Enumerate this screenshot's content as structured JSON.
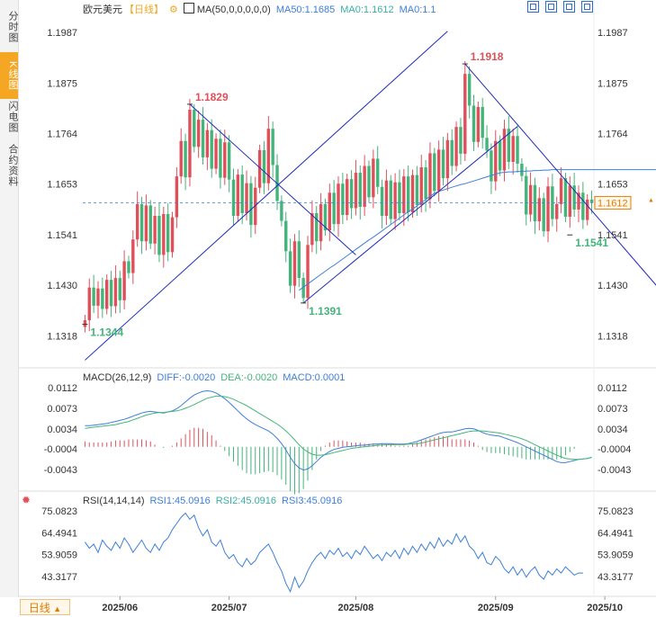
{
  "sidebar": {
    "tabs": [
      {
        "label": "分时图",
        "active": false
      },
      {
        "label": "K线图",
        "active": true
      },
      {
        "label": "闪电图",
        "active": false
      },
      {
        "label": "合约资料",
        "active": false
      }
    ]
  },
  "header": {
    "symbol": "欧元美元",
    "period": "【日线】",
    "settings_icon": "gear-icon",
    "ma_icon": "indicator-icon",
    "ma_label": "MA(50,0,0,0,0,0)",
    "ma50": "MA50:1.1685",
    "ma0a": "MA0:1.1612",
    "ma0b": "MA0:1.1",
    "window_icons": [
      "expand-icon",
      "restore-icon",
      "maximize-icon",
      "fullscreen-icon"
    ]
  },
  "macd_header": {
    "label": "MACD(26,12,9)",
    "diff": "DIFF:-0.0020",
    "dea": "DEA:-0.0020",
    "macd": "MACD:0.0001"
  },
  "rsi_header": {
    "icon": "target-icon",
    "label": "RSI(14,14,14)",
    "rsi1": "RSI1:45.0916",
    "rsi2": "RSI2:45.0916",
    "rsi3": "RSI3:45.0916"
  },
  "footer": {
    "timeframe": "日线",
    "timeframe_icon": "triangle-up-icon"
  },
  "colors": {
    "up": "#e0505a",
    "down": "#43b57a",
    "ma": "#3d7fd9",
    "trend": "#1f2bb8",
    "macd_dea": "#43b57a",
    "accent": "#f5a623",
    "price_tag": "#e07b00"
  },
  "chart_data": [
    {
      "type": "candlestick",
      "title": "欧元美元 日线",
      "x_labels": [
        "2025/06",
        "2025/07",
        "2025/08",
        "2025/09",
        "2025/10"
      ],
      "y_ticks": [
        "1.1987",
        "1.1875",
        "1.1764",
        "1.1653",
        "1.1541",
        "1.1430",
        "1.1318"
      ],
      "ylim": [
        1.125,
        1.2035
      ],
      "current_price": "1.1612",
      "current_price_value": 1.1612,
      "annotations": [
        {
          "label": "1.1344",
          "value": 1.1344,
          "bar": 0,
          "kind": "low"
        },
        {
          "label": "1.1829",
          "value": 1.1829,
          "bar": 24,
          "kind": "high"
        },
        {
          "label": "1.1391",
          "value": 1.1391,
          "bar": 50,
          "kind": "low"
        },
        {
          "label": "1.1918",
          "value": 1.1918,
          "bar": 87,
          "kind": "high"
        },
        {
          "label": "1.1541",
          "value": 1.1541,
          "bar": 111,
          "kind": "low"
        }
      ],
      "trendlines": [
        {
          "from": [
            0,
            1.1265
          ],
          "to": [
            83,
            1.199
          ]
        },
        {
          "from": [
            24,
            1.1829
          ],
          "to": [
            62,
            1.1497
          ]
        },
        {
          "from": [
            50,
            1.1391
          ],
          "to": [
            99,
            1.178
          ]
        },
        {
          "from": [
            87,
            1.1918
          ],
          "to": [
            133,
            1.1405
          ]
        }
      ],
      "ma50": [
        null,
        null,
        null,
        null,
        null,
        null,
        null,
        null,
        null,
        null,
        null,
        null,
        null,
        null,
        null,
        null,
        null,
        null,
        null,
        null,
        null,
        null,
        null,
        null,
        null,
        null,
        null,
        null,
        null,
        null,
        null,
        null,
        null,
        null,
        null,
        null,
        null,
        null,
        null,
        null,
        null,
        null,
        null,
        null,
        null,
        null,
        null,
        null,
        null,
        1.1419,
        1.1426,
        1.1433,
        1.144,
        1.1447,
        1.1454,
        1.1461,
        1.1468,
        1.1474,
        1.1481,
        1.1488,
        1.1495,
        1.1502,
        1.1509,
        1.1516,
        1.1523,
        1.153,
        1.1536,
        1.1543,
        1.155,
        1.1557,
        1.1564,
        1.1571,
        1.1578,
        1.1585,
        1.1592,
        1.1598,
        1.1605,
        1.1612,
        1.1619,
        1.1626,
        1.1633,
        1.1637,
        1.164,
        1.1643,
        1.1646,
        1.1649,
        1.1652,
        1.1654,
        1.1657,
        1.166,
        1.1663,
        1.1666,
        1.1669,
        1.1672,
        1.1675,
        1.1678,
        1.1679,
        1.168,
        1.168,
        1.1681,
        1.1681,
        1.1682,
        1.1682,
        1.1683,
        1.1683,
        1.1684,
        1.1684,
        1.1685,
        1.1685,
        1.1685,
        1.1685,
        1.1685,
        1.1685,
        1.1685,
        1.1685,
        1.1685,
        1.1685,
        1.1685,
        1.1685,
        1.1685,
        1.1685,
        1.1685,
        1.1685,
        1.1685,
        1.1685,
        1.1685,
        1.1685,
        1.1685,
        1.1685,
        1.1685,
        1.1685,
        1.1685,
        1.1685,
        1.1685,
        1.1685
      ],
      "close": [
        1.1353,
        1.1425,
        1.1385,
        1.1423,
        1.1378,
        1.1442,
        1.1384,
        1.1446,
        1.1397,
        1.1483,
        1.1457,
        1.1531,
        1.1609,
        1.1527,
        1.1606,
        1.1522,
        1.1583,
        1.1497,
        1.1587,
        1.1503,
        1.158,
        1.167,
        1.1748,
        1.1668,
        1.1817,
        1.1735,
        1.1795,
        1.1712,
        1.1772,
        1.1687,
        1.1753,
        1.1667,
        1.1745,
        1.1663,
        1.1583,
        1.1674,
        1.1589,
        1.1655,
        1.1563,
        1.1645,
        1.1728,
        1.1655,
        1.1775,
        1.1695,
        1.1616,
        1.1572,
        1.1505,
        1.1429,
        1.1527,
        1.1446,
        1.1402,
        1.1519,
        1.1589,
        1.1527,
        1.1609,
        1.1551,
        1.1634,
        1.1565,
        1.1654,
        1.1585,
        1.1664,
        1.16,
        1.1678,
        1.1603,
        1.1693,
        1.1624,
        1.1709,
        1.1647,
        1.1583,
        1.1661,
        1.1576,
        1.1657,
        1.1589,
        1.167,
        1.1591,
        1.1673,
        1.1607,
        1.169,
        1.162,
        1.1721,
        1.1638,
        1.1729,
        1.1666,
        1.175,
        1.1693,
        1.1779,
        1.172,
        1.1896,
        1.1826,
        1.1746,
        1.1823,
        1.1755,
        1.1727,
        1.1659,
        1.1748,
        1.1683,
        1.1775,
        1.1702,
        1.1759,
        1.1698,
        1.1671,
        1.1586,
        1.1651,
        1.1571,
        1.1622,
        1.1549,
        1.1648,
        1.1576,
        1.1609,
        1.1666,
        1.1581,
        1.165,
        1.1597,
        1.1634,
        1.1574,
        1.1619,
        1.1612
      ],
      "macd": {
        "y_ticks": [
          "0.0112",
          "0.0073",
          "0.0034",
          "-0.0004",
          "-0.0043"
        ],
        "diff_label": "DIFF",
        "dea_label": "DEA",
        "hist_label": "MACD",
        "diff": [
          0.004,
          0.004,
          0.0041,
          0.0042,
          0.0043,
          0.0044,
          0.0046,
          0.0048,
          0.005,
          0.0052,
          0.0055,
          0.0058,
          0.0061,
          0.0064,
          0.0066,
          0.0067,
          0.0066,
          0.0065,
          0.0064,
          0.0066,
          0.0068,
          0.0072,
          0.0078,
          0.0085,
          0.0092,
          0.0098,
          0.0102,
          0.0105,
          0.0106,
          0.0105,
          0.0102,
          0.0097,
          0.0091,
          0.0084,
          0.0076,
          0.0068,
          0.006,
          0.0053,
          0.0047,
          0.0042,
          0.0038,
          0.0034,
          0.003,
          0.0024,
          0.0016,
          0.0006,
          -0.0006,
          -0.002,
          -0.0032,
          -0.004,
          -0.0044,
          -0.0042,
          -0.0036,
          -0.0028,
          -0.002,
          -0.0014,
          -0.0009,
          -0.0005,
          -0.0003,
          -0.0001,
          0.0,
          0.0001,
          0.0002,
          0.0003,
          0.0003,
          0.0004,
          0.0005,
          0.0005,
          0.0006,
          0.0006,
          0.0006,
          0.0005,
          0.0005,
          0.0005,
          0.0006,
          0.0008,
          0.001,
          0.0013,
          0.0016,
          0.0019,
          0.0022,
          0.0025,
          0.0027,
          0.0028,
          0.0028,
          0.003,
          0.0032,
          0.0034,
          0.0035,
          0.0034,
          0.0031,
          0.0027,
          0.0024,
          0.0022,
          0.0021,
          0.002,
          0.0017,
          0.0014,
          0.0011,
          0.0008,
          0.0004,
          0.0,
          -0.0004,
          -0.0008,
          -0.0012,
          -0.0016,
          -0.002,
          -0.0024,
          -0.0028,
          -0.003,
          -0.003,
          -0.0028,
          -0.0026,
          -0.0024,
          -0.0023,
          -0.0022,
          -0.002
        ],
        "dea": [
          0.0035,
          0.0036,
          0.0037,
          0.0038,
          0.0039,
          0.004,
          0.0041,
          0.0042,
          0.0044,
          0.0046,
          0.0048,
          0.0051,
          0.0054,
          0.0057,
          0.006,
          0.0062,
          0.0064,
          0.0065,
          0.0065,
          0.0066,
          0.0067,
          0.0068,
          0.007,
          0.0073,
          0.0076,
          0.008,
          0.0084,
          0.0088,
          0.0092,
          0.0094,
          0.0096,
          0.0096,
          0.0095,
          0.0093,
          0.009,
          0.0086,
          0.0082,
          0.0078,
          0.0073,
          0.0068,
          0.0063,
          0.0058,
          0.0053,
          0.0048,
          0.0043,
          0.0037,
          0.003,
          0.0022,
          0.0013,
          0.0004,
          -0.0004,
          -0.001,
          -0.0014,
          -0.0016,
          -0.0016,
          -0.0015,
          -0.0013,
          -0.0011,
          -0.0009,
          -0.0007,
          -0.0005,
          -0.0003,
          -0.0002,
          -0.0001,
          0.0,
          0.0001,
          0.0002,
          0.0003,
          0.0003,
          0.0004,
          0.0004,
          0.0004,
          0.0004,
          0.0004,
          0.0005,
          0.0005,
          0.0006,
          0.0007,
          0.0009,
          0.0011,
          0.0013,
          0.0015,
          0.0017,
          0.0019,
          0.0021,
          0.0023,
          0.0025,
          0.0027,
          0.0029,
          0.003,
          0.003,
          0.003,
          0.0029,
          0.0028,
          0.0027,
          0.0026,
          0.0024,
          0.0022,
          0.002,
          0.0018,
          0.0015,
          0.0012,
          0.0008,
          0.0004,
          0.0,
          -0.0004,
          -0.0008,
          -0.0012,
          -0.0016,
          -0.0019,
          -0.0022,
          -0.0023,
          -0.0024,
          -0.0024,
          -0.0023,
          -0.0022,
          -0.002
        ]
      },
      "rsi": {
        "y_ticks": [
          "75.0823",
          "64.4941",
          "53.9059",
          "43.3177"
        ],
        "values": [
          60,
          57,
          59,
          55,
          61,
          58,
          56,
          60,
          57,
          62,
          59,
          55,
          58,
          61,
          57,
          55,
          59,
          56,
          60,
          62,
          66,
          69,
          72,
          74,
          71,
          73,
          67,
          63,
          66,
          60,
          58,
          61,
          55,
          52,
          54,
          50,
          48,
          52,
          49,
          51,
          55,
          57,
          59,
          55,
          50,
          46,
          40,
          36,
          43,
          38,
          41,
          46,
          50,
          53,
          55,
          52,
          56,
          54,
          57,
          53,
          55,
          52,
          56,
          54,
          58,
          55,
          52,
          54,
          51,
          55,
          53,
          56,
          52,
          57,
          54,
          58,
          55,
          59,
          56,
          60,
          57,
          62,
          58,
          61,
          59,
          64,
          60,
          63,
          58,
          56,
          52,
          55,
          50,
          49,
          53,
          51,
          47,
          45,
          48,
          44,
          47,
          43,
          46,
          48,
          44,
          42,
          46,
          44,
          47,
          45,
          48,
          46,
          44,
          45,
          45
        ]
      }
    }
  ]
}
